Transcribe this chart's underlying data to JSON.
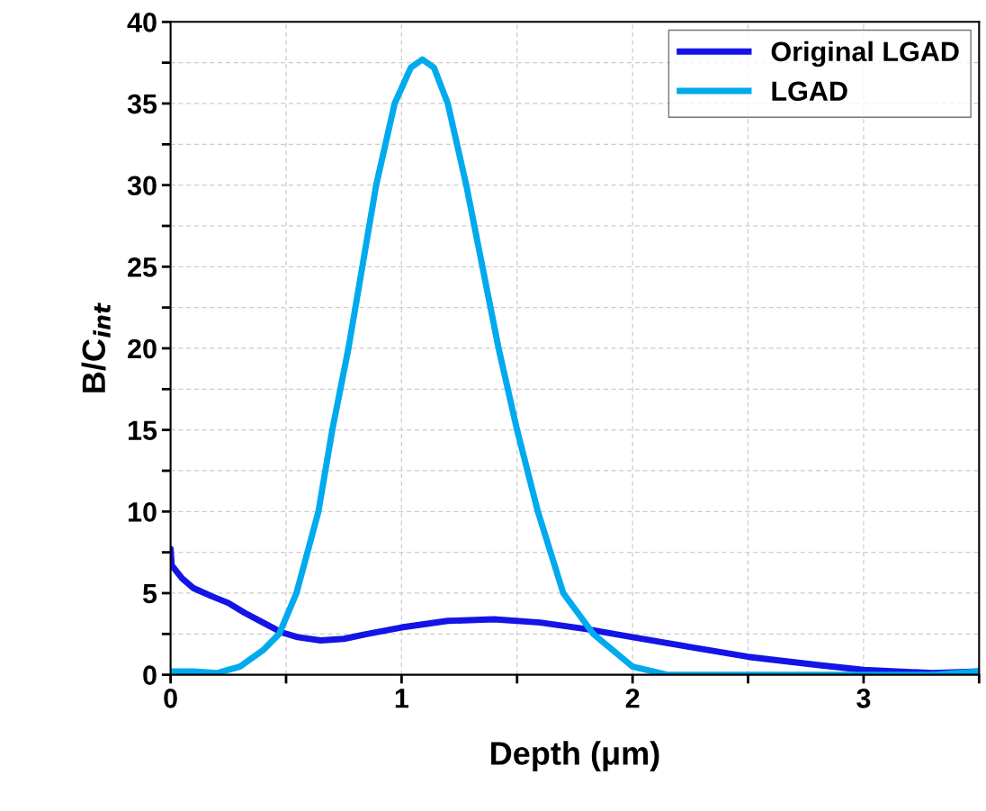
{
  "chart_data": {
    "type": "line",
    "xlabel": "Depth (μm)",
    "ylabel": "B/C$_{int}$",
    "xlim": [
      0,
      3.5
    ],
    "ylim": [
      0,
      40
    ],
    "xticks": [
      0,
      {
        "value": 0.5,
        "label": null
      },
      1,
      {
        "value": 1.5,
        "label": null
      },
      2,
      {
        "value": 2.5,
        "label": null
      },
      3,
      {
        "value": 3.5,
        "label": null
      }
    ],
    "yticks": [
      0,
      {
        "value": 2.5,
        "label": null
      },
      5,
      {
        "value": 7.5,
        "label": null
      },
      10,
      {
        "value": 12.5,
        "label": null
      },
      15,
      {
        "value": 17.5,
        "label": null
      },
      20,
      {
        "value": 22.5,
        "label": null
      },
      25,
      {
        "value": 27.5,
        "label": null
      },
      30,
      {
        "value": 32.5,
        "label": null
      },
      35,
      {
        "value": 37.5,
        "label": null
      },
      40
    ],
    "grid": true,
    "legend": "top right",
    "marker": "none",
    "line_style": "solid",
    "series": [
      {
        "name": "Original LGAD",
        "color": "#1414e6",
        "x": [
          0,
          0.005,
          0.05,
          0.1,
          0.18,
          0.25,
          0.32,
          0.4,
          0.48,
          0.55,
          0.65,
          0.75,
          0.85,
          1.0,
          1.2,
          1.4,
          1.6,
          1.8,
          2.0,
          2.25,
          2.5,
          2.8,
          3.0,
          3.3,
          3.5
        ],
        "values": [
          7.7,
          6.7,
          5.9,
          5.3,
          4.8,
          4.4,
          3.8,
          3.2,
          2.6,
          2.3,
          2.1,
          2.2,
          2.5,
          2.9,
          3.3,
          3.4,
          3.2,
          2.8,
          2.3,
          1.7,
          1.1,
          0.6,
          0.3,
          0.1,
          0.2
        ]
      },
      {
        "name": "LGAD",
        "color": "#00aaee",
        "x": [
          0,
          0.1,
          0.2,
          0.3,
          0.4,
          0.47,
          0.545,
          0.64,
          0.7,
          0.77,
          0.83,
          0.89,
          0.97,
          1.04,
          1.09,
          1.14,
          1.2,
          1.28,
          1.35,
          1.42,
          1.5,
          1.59,
          1.7,
          1.83,
          2.0,
          2.15,
          2.5,
          3.0,
          3.3,
          3.5
        ],
        "values": [
          0.2,
          0.2,
          0.1,
          0.5,
          1.5,
          2.5,
          5,
          10,
          15,
          20,
          25,
          30,
          35,
          37.2,
          37.7,
          37.2,
          35,
          30,
          25,
          20,
          15,
          10,
          5,
          2.5,
          0.5,
          0,
          0,
          0,
          0,
          0.2
        ]
      }
    ]
  }
}
